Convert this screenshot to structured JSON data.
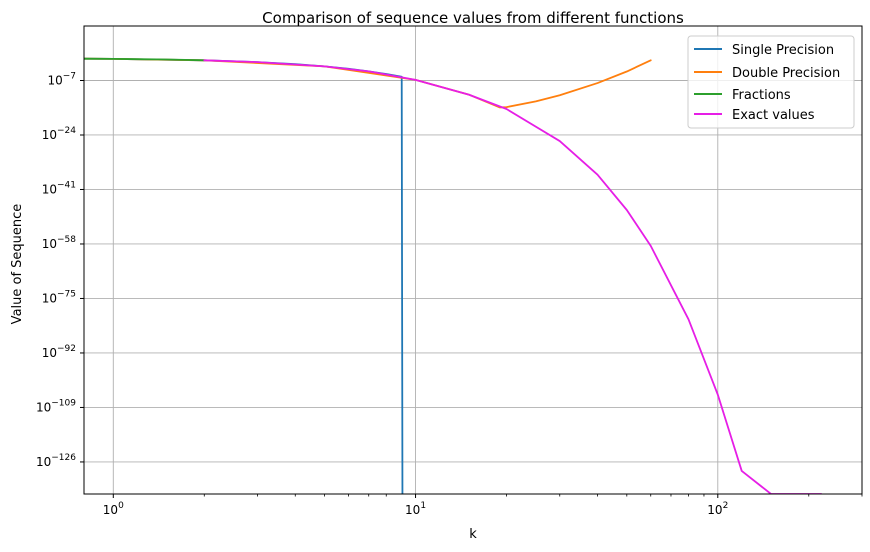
{
  "chart_data": {
    "type": "line",
    "title": "Comparison of sequence values from different functions",
    "xlabel": "k",
    "ylabel": "Value of Sequence",
    "xscale": "log",
    "yscale": "log",
    "xlim": [
      0.8,
      300
    ],
    "ylim": [
      1e-136,
      10000000000.0
    ],
    "grid": true,
    "legend_position": "top-right",
    "x_ticks": [
      {
        "value": 1,
        "base": "10",
        "exp": "0"
      },
      {
        "value": 10,
        "base": "10",
        "exp": "1"
      },
      {
        "value": 100,
        "base": "10",
        "exp": "2"
      }
    ],
    "y_ticks": [
      {
        "value": -7,
        "base": "10",
        "exp": "−7"
      },
      {
        "value": -24,
        "base": "10",
        "exp": "−24"
      },
      {
        "value": -41,
        "base": "10",
        "exp": "−41"
      },
      {
        "value": -58,
        "base": "10",
        "exp": "−58"
      },
      {
        "value": -75,
        "base": "10",
        "exp": "−75"
      },
      {
        "value": -92,
        "base": "10",
        "exp": "−92"
      },
      {
        "value": -109,
        "base": "10",
        "exp": "−109"
      },
      {
        "value": -126,
        "base": "10",
        "exp": "−126"
      }
    ],
    "series": [
      {
        "name": "Single Precision",
        "color": "#1f77b4",
        "x": [
          0.8,
          1,
          2,
          3,
          4,
          5,
          6,
          7,
          8,
          9,
          9.05
        ],
        "log10_y": [
          -0.2,
          -0.26,
          -0.7,
          -1.26,
          -1.9,
          -2.6,
          -3.35,
          -4.15,
          -4.98,
          -5.84,
          -136
        ]
      },
      {
        "name": "Double Precision",
        "color": "#ff7f0e",
        "x": [
          0.8,
          1,
          2,
          5,
          10,
          15,
          19,
          20,
          25,
          30,
          40,
          50,
          60
        ],
        "log10_y": [
          -0.2,
          -0.26,
          -0.7,
          -2.6,
          -6.8,
          -11.4,
          -15.4,
          -15.3,
          -13.5,
          -11.6,
          -7.8,
          -4.2,
          -0.7
        ]
      },
      {
        "name": "Fractions",
        "color": "#2ca02c",
        "x": [
          0.8,
          1,
          1.5,
          2
        ],
        "log10_y": [
          -0.2,
          -0.26,
          -0.45,
          -0.7
        ]
      },
      {
        "name": "Exact values",
        "color": "#e61ee6",
        "x": [
          2,
          3,
          5,
          7,
          10,
          15,
          20,
          30,
          40,
          50,
          60,
          80,
          100,
          120,
          150,
          180,
          200,
          220
        ],
        "log10_y": [
          -0.7,
          -1.26,
          -2.6,
          -4.15,
          -6.8,
          -11.4,
          -15.9,
          -25.9,
          -36.4,
          -47.4,
          -58.6,
          -81.5,
          -105.0,
          -128.8,
          -148.0,
          -168.0,
          -180.0,
          -192.0
        ]
      }
    ]
  }
}
